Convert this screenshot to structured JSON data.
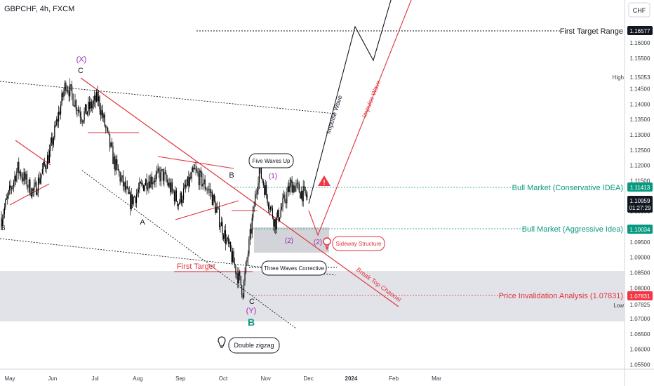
{
  "header": {
    "symbol": "GBPCHF, 4h, FXCM"
  },
  "axis_currency": "CHF",
  "colors": {
    "candle": "#000000",
    "trend_red": "#e0323c",
    "teal": "#089981",
    "purple": "#9c27b0",
    "axis_text": "#363a45",
    "badge_red": "#f23645",
    "badge_black": "#131722"
  },
  "chart_data": {
    "type": "candlestick",
    "title": "GBPCHF, 4h, FXCM",
    "ylim": [
      1.0535,
      1.174
    ],
    "y_ticks": [
      "1.16000",
      "1.15500",
      "1.14500",
      "1.14000",
      "1.13500",
      "1.13000",
      "1.12500",
      "1.12000",
      "1.11500",
      "1.10500",
      "1.09500",
      "1.09000",
      "1.08500",
      "1.08000",
      "1.07000",
      "1.06500",
      "1.06000",
      "1.05500"
    ],
    "x_ticks": [
      "May",
      "Jun",
      "Jul",
      "Aug",
      "Sep",
      "Oct",
      "Nov",
      "Dec",
      "2024",
      "Feb",
      "Mar"
    ],
    "price_path": [
      [
        "May",
        1.103
      ],
      [
        "May (2nd half)",
        1.119
      ],
      [
        "late May",
        1.111
      ],
      [
        "early Jun",
        1.124
      ],
      [
        "mid Jun",
        1.147
      ],
      [
        "late Jun",
        1.136
      ],
      [
        "early Jul",
        1.142
      ],
      [
        "Jul",
        1.121
      ],
      [
        "late Jul",
        1.108
      ],
      [
        "Aug",
        1.115
      ],
      [
        "Sep",
        1.117
      ],
      [
        "late Sep",
        1.108
      ],
      [
        "early Oct",
        1.118
      ],
      [
        "Oct",
        1.111
      ],
      [
        "mid Oct",
        1.095
      ],
      [
        "late Oct",
        1.079
      ],
      [
        "Nov",
        1.119
      ],
      [
        "mid Nov",
        1.101
      ],
      [
        "late Nov",
        1.114
      ],
      [
        "Dec",
        1.1096
      ]
    ],
    "price_labels": [
      {
        "label": "First Target Range",
        "value": "1.16577",
        "style": "dark"
      },
      {
        "label": "High",
        "value": "1.15053",
        "style": "plain"
      },
      {
        "label": "Bull Market (Conservative IDEA)",
        "value": "1.11413",
        "style": "teal"
      },
      {
        "label": "",
        "value": "1.10959",
        "style": "dark",
        "countdown": "01:27:29"
      },
      {
        "label": "Bull Market (Aggressive Idea)",
        "value": "1.10034",
        "style": "teal"
      },
      {
        "label": "Price Invalidation Analysis (1.07831)",
        "value": "1.07831",
        "style": "red"
      },
      {
        "label": "Low",
        "value": "1.07825",
        "style": "plain"
      }
    ],
    "annotations": {
      "wave_x": "(X)",
      "wave_y": "(Y)",
      "c_top": "C",
      "c_bottom": "C",
      "b_left": "B",
      "a_mid": "A",
      "b_mid": "B",
      "b_green": "B",
      "wave_1": "(1)",
      "wave_2a": "(2)",
      "wave_2b": "(2)",
      "five_waves": "Five Waves Up",
      "three_waves": "Three Waves Corrective",
      "sideway": "Sideway Structure",
      "first_target": "First Target",
      "impulse_black": "Impulse Wave",
      "impulse_red": "Impulse Wave",
      "break_channel": "Break Top Channel",
      "double_zigzag": "Double zigzag",
      "warning": "!"
    }
  }
}
